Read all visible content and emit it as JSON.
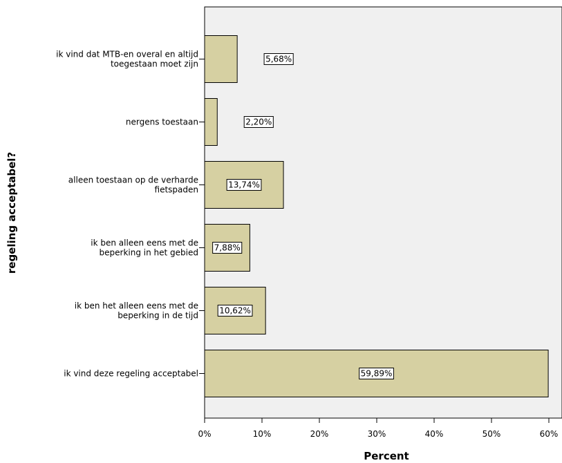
{
  "chart_data": {
    "type": "bar",
    "orientation": "horizontal",
    "categories": [
      [
        "ik vind dat MTB-en overal en altijd",
        "toegestaan moet zijn"
      ],
      [
        "nergens toestaan"
      ],
      [
        "alleen toestaan op de verharde",
        "fietspaden"
      ],
      [
        "ik ben alleen eens met de",
        "beperking in het gebied"
      ],
      [
        "ik ben het alleen eens met de",
        "beperking in de tijd"
      ],
      [
        "ik vind deze regeling acceptabel"
      ]
    ],
    "values": [
      5.68,
      2.2,
      13.74,
      7.88,
      10.62,
      59.89
    ],
    "value_labels": [
      "5,68%",
      "2,20%",
      "13,74%",
      "7,88%",
      "10,62%",
      "59,89%"
    ],
    "xlabel": "Percent",
    "ylabel": "regeling acceptabel?",
    "xlim": [
      0,
      60
    ],
    "xticks": [
      0,
      10,
      20,
      30,
      40,
      50,
      60
    ],
    "xtick_labels": [
      "0%",
      "10%",
      "20%",
      "30%",
      "40%",
      "50%",
      "60%"
    ],
    "grid": false,
    "bar_color": "#d6d0a2",
    "plot_background": "#f0f0f0"
  }
}
